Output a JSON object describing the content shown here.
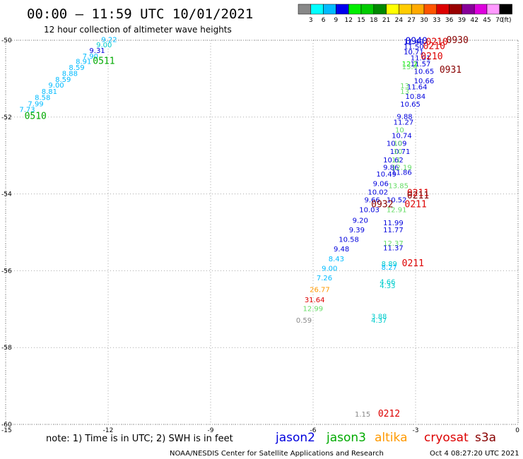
{
  "header": {
    "title": "00:00 – 11:59 UTC 10/01/2021",
    "subtitle": "12 hour collection of altimeter wave heights"
  },
  "legend_scale": {
    "unit": "(ft)",
    "ticks": [
      "3",
      "6",
      "9",
      "12",
      "15",
      "18",
      "21",
      "24",
      "27",
      "30",
      "33",
      "36",
      "39",
      "42",
      "45",
      "70"
    ],
    "colors": [
      "#888888",
      "#00ffff",
      "#00bbff",
      "#0000ee",
      "#00ee00",
      "#00cc00",
      "#008800",
      "#ffff00",
      "#ffcc00",
      "#ffaa00",
      "#ff5500",
      "#dd0000",
      "#990000",
      "#880099",
      "#dd00dd",
      "#ff99ff",
      "#000000"
    ]
  },
  "footer": {
    "note": "note:  1) Time is in UTC;  2) SWH is in feet",
    "satellites": [
      {
        "name": "jason2",
        "color": "#0000dd"
      },
      {
        "name": "jason3",
        "color": "#00aa00"
      },
      {
        "name": "altika",
        "color": "#ff9900"
      },
      {
        "name": "cryosat",
        "color": "#dd0000"
      },
      {
        "name": "s3a",
        "color": "#880000"
      }
    ],
    "credit": "NOAA/NESDIS Center for Satellite Applications and Research",
    "timestamp": "Oct  4 08:27:20 UTC 2021"
  },
  "chart_data": {
    "type": "scatter",
    "xlim": [
      -15,
      0
    ],
    "ylim": [
      -60,
      -50
    ],
    "x_ticks": [
      -15,
      -12,
      -9,
      -6,
      -3,
      0
    ],
    "y_ticks": [
      -50,
      -52,
      -54,
      -56,
      -58,
      -60
    ],
    "grid": true,
    "value_labels": [
      {
        "x": -12.2,
        "y": -50.05,
        "text": "9.22",
        "color": "#00bbff"
      },
      {
        "x": -12.35,
        "y": -50.18,
        "text": "9.00",
        "color": "#00cccc"
      },
      {
        "x": -12.55,
        "y": -50.33,
        "text": "9.31",
        "color": "#0000dd"
      },
      {
        "x": -12.75,
        "y": -50.48,
        "text": "7.90",
        "color": "#00bbff"
      },
      {
        "x": -12.95,
        "y": -50.62,
        "text": "8.91",
        "color": "#00bbff"
      },
      {
        "x": -13.15,
        "y": -50.77,
        "text": "8.59",
        "color": "#00bbff"
      },
      {
        "x": -13.35,
        "y": -50.93,
        "text": "8.88",
        "color": "#00bbff"
      },
      {
        "x": -13.55,
        "y": -51.08,
        "text": "8.59",
        "color": "#00bbff"
      },
      {
        "x": -13.75,
        "y": -51.23,
        "text": "9.00",
        "color": "#00bbff"
      },
      {
        "x": -13.95,
        "y": -51.4,
        "text": "8.81",
        "color": "#00bbff"
      },
      {
        "x": -14.15,
        "y": -51.55,
        "text": "8.58",
        "color": "#00bbff"
      },
      {
        "x": -14.35,
        "y": -51.72,
        "text": "7.99",
        "color": "#00bbff"
      },
      {
        "x": -14.6,
        "y": -51.87,
        "text": "7.73",
        "color": "#00bbff"
      },
      {
        "x": -3.35,
        "y": -50.1,
        "text": "11.49",
        "color": "#0000dd"
      },
      {
        "x": -3.35,
        "y": -50.23,
        "text": "11.50",
        "color": "#0000dd"
      },
      {
        "x": -3.35,
        "y": -50.37,
        "text": "10.71",
        "color": "#0000dd"
      },
      {
        "x": -3.15,
        "y": -50.52,
        "text": "11.01",
        "color": "#0000dd"
      },
      {
        "x": -3.4,
        "y": -50.68,
        "text": "12.2",
        "color": "#00ee00"
      },
      {
        "x": -3.15,
        "y": -50.68,
        "text": "11.57",
        "color": "#0000dd"
      },
      {
        "x": -3.4,
        "y": -50.75,
        "text": "13.4",
        "color": "#66dd66"
      },
      {
        "x": -3.05,
        "y": -50.87,
        "text": "10.65",
        "color": "#0000dd"
      },
      {
        "x": -3.05,
        "y": -51.12,
        "text": "10.66",
        "color": "#0000dd"
      },
      {
        "x": -3.45,
        "y": -51.25,
        "text": "13",
        "color": "#66dd66"
      },
      {
        "x": -3.25,
        "y": -51.28,
        "text": "11.64",
        "color": "#0000dd"
      },
      {
        "x": -3.45,
        "y": -51.4,
        "text": "13",
        "color": "#66dd66"
      },
      {
        "x": -3.3,
        "y": -51.53,
        "text": "10.84",
        "color": "#0000dd"
      },
      {
        "x": -3.45,
        "y": -51.73,
        "text": "10.65",
        "color": "#0000dd"
      },
      {
        "x": -3.55,
        "y": -52.05,
        "text": "9.88",
        "color": "#0000dd"
      },
      {
        "x": -3.65,
        "y": -52.2,
        "text": "11.27",
        "color": "#0000dd"
      },
      {
        "x": -3.6,
        "y": -52.4,
        "text": "10",
        "color": "#66dd66"
      },
      {
        "x": -3.7,
        "y": -52.55,
        "text": "10.74",
        "color": "#0000dd"
      },
      {
        "x": -3.85,
        "y": -52.75,
        "text": "10.09",
        "color": "#0000dd"
      },
      {
        "x": -3.65,
        "y": -52.75,
        "text": "10",
        "color": "#66dd66"
      },
      {
        "x": -3.75,
        "y": -52.96,
        "text": "10.71",
        "color": "#0000dd"
      },
      {
        "x": -3.65,
        "y": -52.96,
        "text": "10",
        "color": "#66dd66"
      },
      {
        "x": -3.95,
        "y": -53.18,
        "text": "10.62",
        "color": "#0000dd"
      },
      {
        "x": -3.7,
        "y": -53.18,
        "text": "11",
        "color": "#66dd66"
      },
      {
        "x": -3.95,
        "y": -53.37,
        "text": "9.86",
        "color": "#0000dd"
      },
      {
        "x": -3.7,
        "y": -53.37,
        "text": "12.19",
        "color": "#66dd66"
      },
      {
        "x": -3.7,
        "y": -53.5,
        "text": "11.86",
        "color": "#0000dd"
      },
      {
        "x": -4.15,
        "y": -53.55,
        "text": "10.49",
        "color": "#0000dd"
      },
      {
        "x": -4.25,
        "y": -53.8,
        "text": "9.06",
        "color": "#0000dd"
      },
      {
        "x": -3.8,
        "y": -53.85,
        "text": "13.85",
        "color": "#66dd66"
      },
      {
        "x": -4.4,
        "y": -54.02,
        "text": "10.02",
        "color": "#0000dd"
      },
      {
        "x": -4.5,
        "y": -54.22,
        "text": "9.66",
        "color": "#0000dd"
      },
      {
        "x": -3.85,
        "y": -54.22,
        "text": "10.52",
        "color": "#0000dd"
      },
      {
        "x": -3.85,
        "y": -54.48,
        "text": "12.91",
        "color": "#66dd66"
      },
      {
        "x": -4.65,
        "y": -54.48,
        "text": "10.03",
        "color": "#0000dd"
      },
      {
        "x": -4.85,
        "y": -54.75,
        "text": "9.20",
        "color": "#0000dd"
      },
      {
        "x": -3.95,
        "y": -54.82,
        "text": "11.99",
        "color": "#0000dd"
      },
      {
        "x": -4.95,
        "y": -55.0,
        "text": "9.39",
        "color": "#0000dd"
      },
      {
        "x": -3.95,
        "y": -55.0,
        "text": "11.77",
        "color": "#0000dd"
      },
      {
        "x": -5.25,
        "y": -55.25,
        "text": "10.58",
        "color": "#0000dd"
      },
      {
        "x": -3.95,
        "y": -55.35,
        "text": "12.37",
        "color": "#66dd66"
      },
      {
        "x": -3.95,
        "y": -55.47,
        "text": "11.37",
        "color": "#0000dd"
      },
      {
        "x": -5.4,
        "y": -55.5,
        "text": "9.48",
        "color": "#0000dd"
      },
      {
        "x": -5.55,
        "y": -55.75,
        "text": "8.43",
        "color": "#00bbff"
      },
      {
        "x": -4.0,
        "y": -55.88,
        "text": "8.89",
        "color": "#00cccc"
      },
      {
        "x": -4.0,
        "y": -55.97,
        "text": "8.27",
        "color": "#00bbff"
      },
      {
        "x": -5.75,
        "y": -56.0,
        "text": "9.00",
        "color": "#00bbff"
      },
      {
        "x": -5.9,
        "y": -56.25,
        "text": "7.26",
        "color": "#00bbff"
      },
      {
        "x": -4.05,
        "y": -56.35,
        "text": "4.66",
        "color": "#00cccc"
      },
      {
        "x": -4.05,
        "y": -56.45,
        "text": "4.33",
        "color": "#00cccc"
      },
      {
        "x": -6.1,
        "y": -56.55,
        "text": "26.77",
        "color": "#ff9900"
      },
      {
        "x": -6.25,
        "y": -56.82,
        "text": "31.64",
        "color": "#dd0000"
      },
      {
        "x": -6.3,
        "y": -57.05,
        "text": "12.99",
        "color": "#66dd66"
      },
      {
        "x": -4.3,
        "y": -57.25,
        "text": "3.88",
        "color": "#00cccc"
      },
      {
        "x": -4.3,
        "y": -57.35,
        "text": "4.37",
        "color": "#00cccc"
      },
      {
        "x": -6.5,
        "y": -57.35,
        "text": "0.59",
        "color": "#888888"
      },
      {
        "x": -4.78,
        "y": -59.8,
        "text": "1.15",
        "color": "#888888"
      }
    ],
    "time_labels": [
      {
        "x": -12.45,
        "y": -50.62,
        "text": "0511",
        "color": "#00aa00"
      },
      {
        "x": -14.45,
        "y": -52.05,
        "text": "0510",
        "color": "#00aa00"
      },
      {
        "x": -3.3,
        "y": -50.1,
        "text": "0940",
        "color": "#0000dd"
      },
      {
        "x": -2.1,
        "y": -50.07,
        "text": "0930",
        "color": "#880000"
      },
      {
        "x": -2.7,
        "y": -50.12,
        "text": "0210",
        "color": "#dd0000"
      },
      {
        "x": -2.78,
        "y": -50.23,
        "text": "0210",
        "color": "#dd0000"
      },
      {
        "x": -2.85,
        "y": -50.5,
        "text": "0210",
        "color": "#dd0000"
      },
      {
        "x": -2.3,
        "y": -50.85,
        "text": "0931",
        "color": "#880000"
      },
      {
        "x": -3.25,
        "y": -54.05,
        "text": "0211",
        "color": "#dd0000"
      },
      {
        "x": -3.25,
        "y": -54.12,
        "text": "0211",
        "color": "#880000"
      },
      {
        "x": -4.3,
        "y": -54.35,
        "text": "0932",
        "color": "#880000"
      },
      {
        "x": -3.32,
        "y": -54.35,
        "text": "0211",
        "color": "#dd0000"
      },
      {
        "x": -3.4,
        "y": -55.88,
        "text": "0211",
        "color": "#dd0000"
      },
      {
        "x": -4.1,
        "y": -59.8,
        "text": "0212",
        "color": "#dd0000"
      }
    ]
  }
}
